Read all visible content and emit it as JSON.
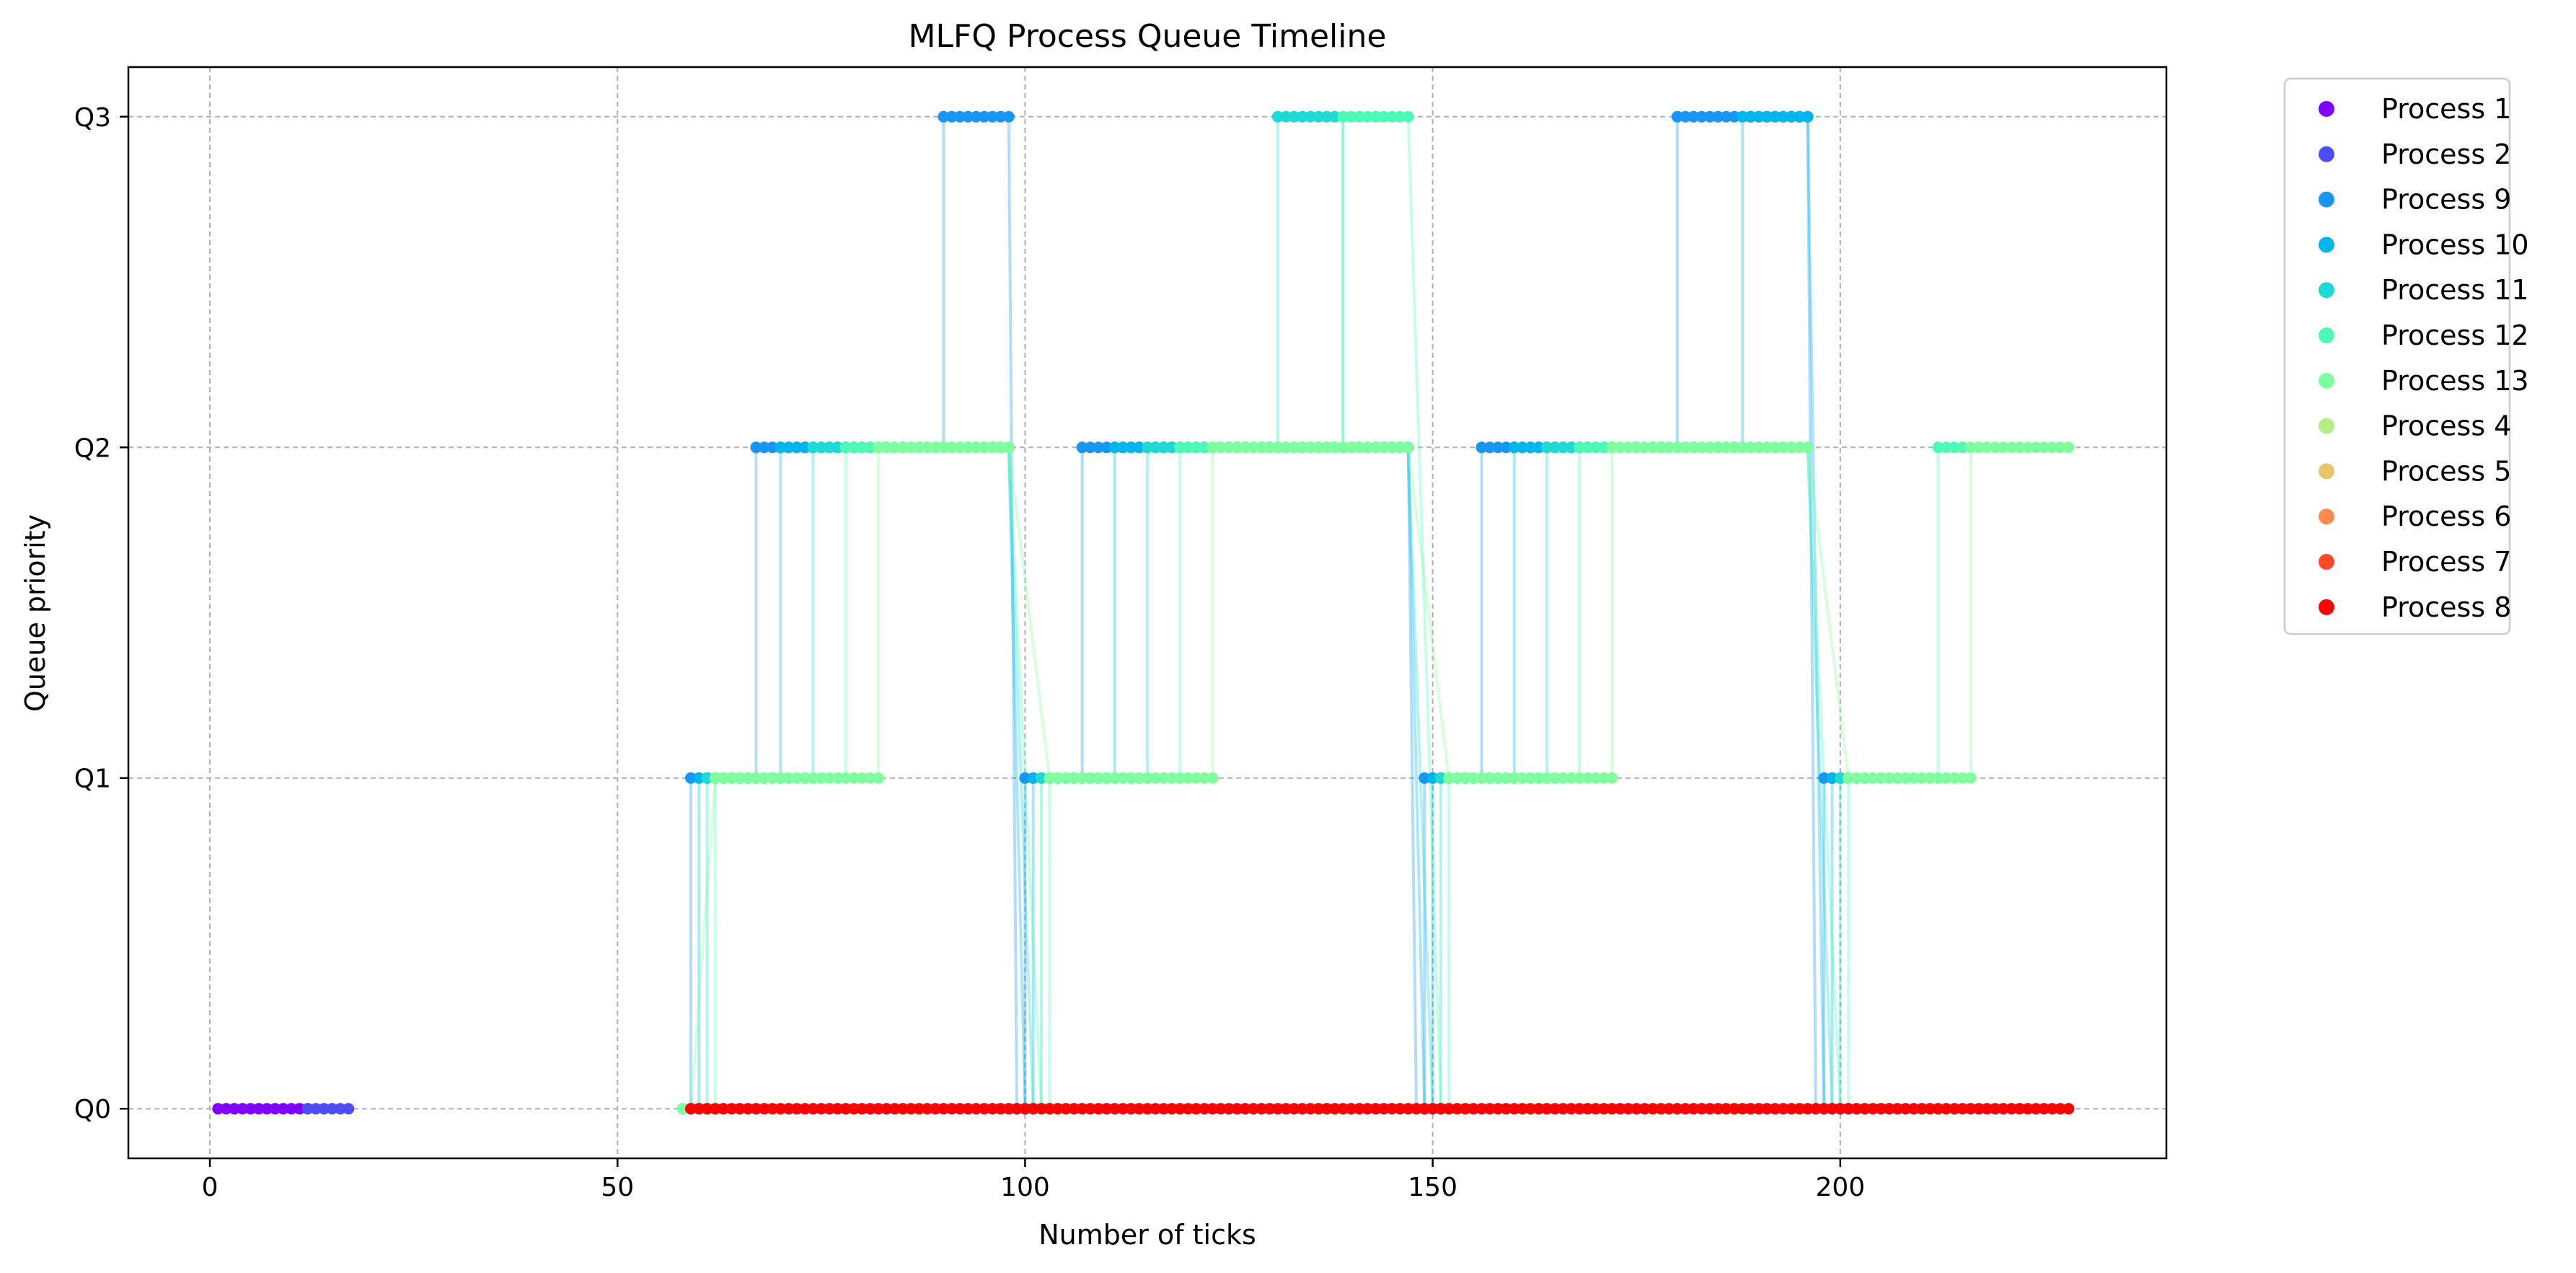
{
  "chart_data": {
    "type": "scatter",
    "title": "MLFQ Process Queue Timeline",
    "xlabel": "Number of ticks",
    "ylabel": "Queue priority",
    "xlim": [
      -10,
      240
    ],
    "ylim": [
      -0.15,
      3.15
    ],
    "xticks": [
      0,
      50,
      100,
      150,
      200
    ],
    "yticks": [
      0,
      1,
      2,
      3
    ],
    "ytick_labels": [
      "Q0",
      "Q1",
      "Q2",
      "Q3"
    ],
    "grid": true,
    "legend_position": "outside-right",
    "series": [
      {
        "name": "Process 1",
        "color": "#8000ff",
        "segments": [
          [
            1,
            12,
            0
          ]
        ]
      },
      {
        "name": "Process 2",
        "color": "#4d4df8",
        "segments": [
          [
            12,
            17,
            0
          ]
        ]
      },
      {
        "name": "Process 9",
        "color": "#1996f3",
        "segments": [
          [
            58,
            59,
            0
          ],
          [
            59,
            67,
            1
          ],
          [
            67,
            90,
            2
          ],
          [
            90,
            98,
            3
          ],
          [
            99,
            100,
            0
          ],
          [
            100,
            107,
            1
          ],
          [
            107,
            147,
            2
          ],
          [
            148,
            149,
            0
          ],
          [
            149,
            156,
            1
          ],
          [
            156,
            180,
            2
          ],
          [
            180,
            196,
            3
          ],
          [
            197,
            198,
            0
          ],
          [
            198,
            200,
            1
          ]
        ]
      },
      {
        "name": "Process 10",
        "color": "#00b5eb",
        "segments": [
          [
            59,
            60,
            0
          ],
          [
            60,
            70,
            1
          ],
          [
            70,
            98,
            2
          ],
          [
            100,
            101,
            0
          ],
          [
            101,
            111,
            1
          ],
          [
            111,
            147,
            2
          ],
          [
            149,
            150,
            0
          ],
          [
            150,
            160,
            1
          ],
          [
            160,
            188,
            2
          ],
          [
            188,
            196,
            3
          ],
          [
            198,
            199,
            0
          ],
          [
            199,
            201,
            1
          ]
        ]
      },
      {
        "name": "Process 11",
        "color": "#1ed9d4",
        "segments": [
          [
            60,
            61,
            0
          ],
          [
            61,
            74,
            1
          ],
          [
            74,
            98,
            2
          ],
          [
            101,
            102,
            0
          ],
          [
            102,
            115,
            1
          ],
          [
            115,
            131,
            2
          ],
          [
            131,
            139,
            3
          ],
          [
            139,
            147,
            2
          ],
          [
            150,
            151,
            0
          ],
          [
            151,
            164,
            1
          ],
          [
            164,
            196,
            2
          ],
          [
            199,
            200,
            0
          ],
          [
            200,
            203,
            1
          ]
        ]
      },
      {
        "name": "Process 12",
        "color": "#4efbb6",
        "segments": [
          [
            61,
            62,
            0
          ],
          [
            62,
            78,
            1
          ],
          [
            78,
            98,
            2
          ],
          [
            102,
            103,
            0
          ],
          [
            103,
            119,
            1
          ],
          [
            119,
            139,
            2
          ],
          [
            139,
            147,
            3
          ],
          [
            151,
            152,
            0
          ],
          [
            152,
            168,
            1
          ],
          [
            168,
            196,
            2
          ],
          [
            200,
            201,
            0
          ],
          [
            201,
            212,
            1
          ],
          [
            212,
            217,
            2
          ]
        ]
      },
      {
        "name": "Process 13",
        "color": "#80ff9f",
        "segments": [
          [
            58,
            59,
            0
          ],
          [
            62,
            82,
            1
          ],
          [
            82,
            98,
            2
          ],
          [
            103,
            123,
            1
          ],
          [
            123,
            147,
            2
          ],
          [
            152,
            172,
            1
          ],
          [
            172,
            196,
            2
          ],
          [
            201,
            216,
            1
          ],
          [
            216,
            228,
            2
          ]
        ]
      },
      {
        "name": "Process 4",
        "color": "#b3ee84",
        "segments": []
      },
      {
        "name": "Process 5",
        "color": "#e6c66a",
        "segments": []
      },
      {
        "name": "Process 6",
        "color": "#ff8a4f",
        "segments": []
      },
      {
        "name": "Process 7",
        "color": "#ff4a26",
        "segments": []
      },
      {
        "name": "Process 8",
        "color": "#ff0000",
        "segments": [
          [
            59,
            228,
            0
          ]
        ]
      }
    ]
  }
}
